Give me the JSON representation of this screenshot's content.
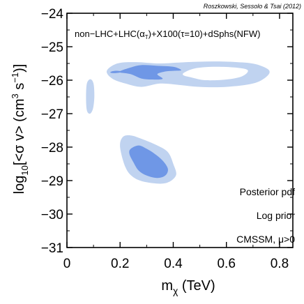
{
  "chart_data": {
    "type": "contour",
    "credit": "Roszkowski, Sessolo & Tsai (2012)",
    "title": "non−LHC+LHC(α_T)+X100(τ=10)+dSphs(NFW)",
    "title_parts": {
      "before": "non−LHC+LHC(α",
      "sub": "T",
      "after": ")+X100(τ=10)+dSphs(NFW)"
    },
    "xlabel_parts": {
      "main": "m",
      "sub": "χ",
      "tail": " (TeV)"
    },
    "ylabel_parts": {
      "a": "log",
      "a_sub": "10",
      "b": "[<σ v> (cm",
      "b_sup": "3",
      "c": " s",
      "c_sup": "−1",
      "d": ")]"
    },
    "xlim": [
      0,
      0.85
    ],
    "ylim": [
      -31,
      -24
    ],
    "x_ticks": [
      0,
      0.2,
      0.4,
      0.6,
      0.8
    ],
    "x_tick_labels": [
      "0",
      "0.2",
      "0.4",
      "0.6",
      "0.8"
    ],
    "y_ticks": [
      -31,
      -30,
      -29,
      -28,
      -27,
      -26,
      -25,
      -24
    ],
    "y_tick_labels": [
      "−31",
      "−30",
      "−29",
      "−28",
      "−27",
      "−26",
      "−25",
      "−24"
    ],
    "annotations": [
      "Posterior pdf",
      "Log prior",
      "CMSSM, μ>0"
    ],
    "colors": {
      "c95": "#c0d3f0",
      "c68": "#6f97e6",
      "hole": "#ffffff",
      "axis": "#000000"
    },
    "regions": [
      {
        "level": "95%",
        "points": [
          [
            0.075,
            -26.9
          ],
          [
            0.072,
            -26.5
          ],
          [
            0.075,
            -26.1
          ],
          [
            0.088,
            -25.97
          ],
          [
            0.1,
            -26.1
          ],
          [
            0.103,
            -26.5
          ],
          [
            0.098,
            -26.85
          ],
          [
            0.087,
            -27.0
          ]
        ]
      },
      {
        "level": "95%",
        "points": [
          [
            0.15,
            -25.72
          ],
          [
            0.19,
            -25.5
          ],
          [
            0.26,
            -25.46
          ],
          [
            0.35,
            -25.5
          ],
          [
            0.45,
            -25.46
          ],
          [
            0.55,
            -25.44
          ],
          [
            0.64,
            -25.46
          ],
          [
            0.71,
            -25.52
          ],
          [
            0.76,
            -25.7
          ],
          [
            0.75,
            -25.9
          ],
          [
            0.7,
            -26.1
          ],
          [
            0.6,
            -26.2
          ],
          [
            0.5,
            -26.2
          ],
          [
            0.42,
            -26.14
          ],
          [
            0.35,
            -26.1
          ],
          [
            0.28,
            -26.2
          ],
          [
            0.22,
            -26.1
          ],
          [
            0.17,
            -25.95
          ]
        ]
      },
      {
        "level": "95%",
        "points": [
          [
            0.2,
            -28.0
          ],
          [
            0.21,
            -27.7
          ],
          [
            0.24,
            -27.65
          ],
          [
            0.28,
            -27.75
          ],
          [
            0.34,
            -27.95
          ],
          [
            0.38,
            -28.15
          ],
          [
            0.4,
            -28.5
          ],
          [
            0.41,
            -28.85
          ],
          [
            0.37,
            -29.08
          ],
          [
            0.3,
            -29.05
          ],
          [
            0.25,
            -28.9
          ],
          [
            0.22,
            -28.6
          ]
        ]
      },
      {
        "level": "68%",
        "points": [
          [
            0.2,
            -25.73
          ],
          [
            0.24,
            -25.62
          ],
          [
            0.28,
            -25.55
          ],
          [
            0.34,
            -25.57
          ],
          [
            0.4,
            -25.6
          ],
          [
            0.43,
            -25.7
          ],
          [
            0.4,
            -25.72
          ],
          [
            0.37,
            -25.74
          ],
          [
            0.34,
            -25.82
          ],
          [
            0.36,
            -25.96
          ],
          [
            0.32,
            -25.98
          ],
          [
            0.28,
            -25.95
          ],
          [
            0.24,
            -25.82
          ],
          [
            0.2,
            -25.77
          ]
        ]
      },
      {
        "level": "68%",
        "points": [
          [
            0.165,
            -25.75
          ],
          [
            0.18,
            -25.72
          ],
          [
            0.2,
            -25.73
          ],
          [
            0.2,
            -25.77
          ],
          [
            0.18,
            -25.79
          ],
          [
            0.165,
            -25.78
          ]
        ]
      },
      {
        "level": "68%",
        "points": [
          [
            0.24,
            -28.05
          ],
          [
            0.27,
            -27.95
          ],
          [
            0.3,
            -28.05
          ],
          [
            0.33,
            -28.2
          ],
          [
            0.36,
            -28.4
          ],
          [
            0.38,
            -28.65
          ],
          [
            0.37,
            -28.85
          ],
          [
            0.34,
            -28.92
          ],
          [
            0.3,
            -28.85
          ],
          [
            0.27,
            -28.7
          ],
          [
            0.25,
            -28.45
          ],
          [
            0.235,
            -28.2
          ]
        ]
      },
      {
        "level": "hole",
        "points": [
          [
            0.44,
            -25.78
          ],
          [
            0.48,
            -25.65
          ],
          [
            0.55,
            -25.6
          ],
          [
            0.63,
            -25.62
          ],
          [
            0.68,
            -25.7
          ],
          [
            0.66,
            -25.88
          ],
          [
            0.6,
            -25.98
          ],
          [
            0.52,
            -26.0
          ],
          [
            0.47,
            -25.92
          ],
          [
            0.44,
            -25.86
          ]
        ]
      }
    ]
  }
}
